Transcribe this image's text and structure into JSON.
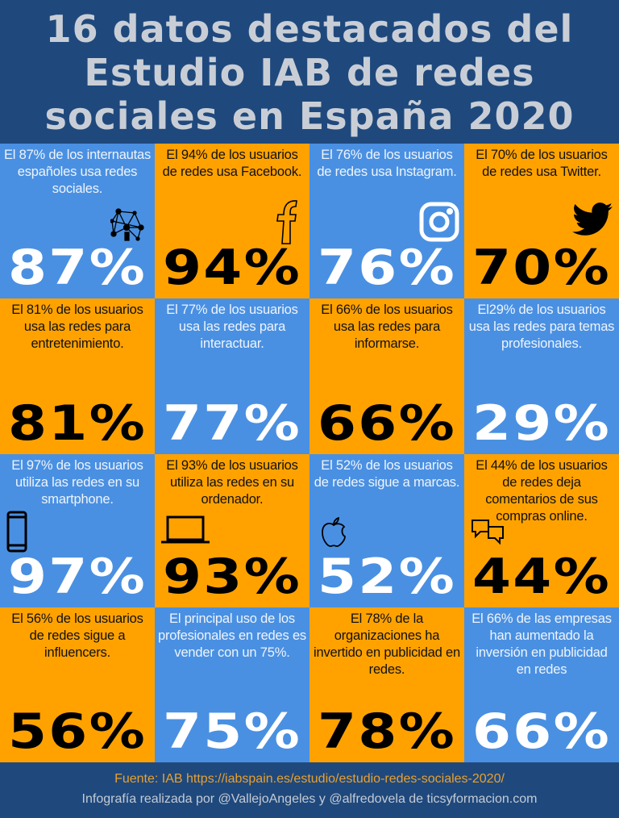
{
  "header": {
    "title_lines": [
      "16 datos destacados del",
      "Estudio IAB de redes",
      "sociales en España 2020"
    ]
  },
  "colors": {
    "blue": "#4a90e2",
    "orange": "#ffa200",
    "navy": "#1f497d"
  },
  "cards": [
    {
      "text": "El 87% de los internautas españoles usa redes sociales.",
      "value": "87%",
      "color": "blue",
      "icon": "network-icon"
    },
    {
      "text": "El 94% de los usuarios de redes usa Facebook.",
      "value": "94%",
      "color": "orange",
      "icon": "facebook-icon"
    },
    {
      "text": "El 76% de los usuarios de redes usa Instagram.",
      "value": "76%",
      "color": "blue",
      "icon": "instagram-icon"
    },
    {
      "text": "El 70% de los usuarios de redes usa Twitter.",
      "value": "70%",
      "color": "orange",
      "icon": "twitter-icon"
    },
    {
      "text": "El 81% de los usuarios usa las redes para entretenimiento.",
      "value": "81%",
      "color": "orange"
    },
    {
      "text": "El 77% de los usuarios usa las redes para interactuar.",
      "value": "77%",
      "color": "blue"
    },
    {
      "text": "El 66% de los usuarios usa las redes para informarse.",
      "value": "66%",
      "color": "orange"
    },
    {
      "text": "El29% de los usuarios usa las redes para temas profesionales.",
      "value": "29%",
      "color": "blue"
    },
    {
      "text": "El 97% de los usuarios utiliza las redes en su smartphone.",
      "value": "97%",
      "color": "blue",
      "icon": "smartphone-icon"
    },
    {
      "text": "El 93% de los usuarios utiliza las redes en su ordenador.",
      "value": "93%",
      "color": "orange",
      "icon": "laptop-icon"
    },
    {
      "text": "El 52% de los usuarios de redes sigue a marcas.",
      "value": "52%",
      "color": "blue",
      "icon": "apple-icon"
    },
    {
      "text": "El 44% de los usuarios de redes deja comentarios de sus compras online.",
      "value": "44%",
      "color": "orange",
      "icon": "chat-bubbles-icon"
    },
    {
      "text": "El 56% de los usuarios de redes sigue a influencers.",
      "value": "56%",
      "color": "orange"
    },
    {
      "text": "El principal uso de los profesionales en redes es vender con un 75%.",
      "value": "75%",
      "color": "blue"
    },
    {
      "text": "El 78% de la organizaciones ha invertido en publicidad en redes.",
      "value": "78%",
      "color": "orange"
    },
    {
      "text": "El 66% de las empresas han aumentado la inversión en publicidad en redes",
      "value": "66%",
      "color": "blue"
    }
  ],
  "footer": {
    "source": "Fuente: IAB https://iabspain.es/estudio/estudio-redes-sociales-2020/",
    "credit": "Infografía realizada por @VallejoAngeles y @alfredovela de ticsyformacion.com"
  }
}
